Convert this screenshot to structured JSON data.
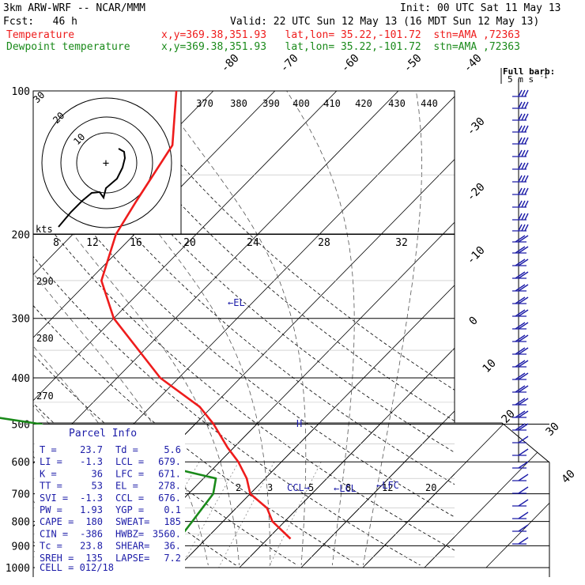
{
  "header": {
    "title": "3km ARW-WRF -- NCAR/MMM",
    "init": "Init: 00 UTC Sat 11 May 13",
    "fcst": "Fcst:   46 h",
    "valid": "Valid: 22 UTC Sun 12 May 13 (16 MDT Sun 12 May 13)",
    "temp_label": "Temperature",
    "temp_info": "x,y=369.38,351.93   lat,lon= 35.22,-101.72  stn=AMA ,72363",
    "dew_label": "Dewpoint temperature",
    "dew_info": "x,y=369.38,351.93   lat,lon= 35.22,-101.72  stn=AMA ,72363",
    "barb_key": "Full barb:",
    "barb_key_units": "5 m s",
    "barb_key_exp": "-1"
  },
  "colors": {
    "temperature": "#ee1c1c",
    "dewpoint": "#1a8a1a",
    "text": "#000000",
    "blue": "#1c1ca8",
    "grid": "#000000",
    "mixing": "#888888"
  },
  "chart_data": {
    "type": "line",
    "subtype": "skew-t log-p sounding",
    "pressure_levels_label": [
      "100",
      "200",
      "300",
      "400",
      "500",
      "600",
      "700",
      "800",
      "900",
      "1000"
    ],
    "pressure_levels": [
      100,
      200,
      300,
      400,
      500,
      600,
      700,
      800,
      900,
      1000
    ],
    "isotherm_labels": [
      "-80",
      "-70",
      "-60",
      "-50",
      "-40",
      "-30",
      "-20",
      "-10",
      "0",
      "10",
      "20",
      "30",
      "40"
    ],
    "mixing_ratio_labels": [
      "2",
      "3",
      "5",
      "8",
      "12",
      "20"
    ],
    "theta_labels": [
      "290",
      "280",
      "270"
    ],
    "series": [
      {
        "name": "Temperature",
        "points": [
          [
            100,
            -66
          ],
          [
            130,
            -58
          ],
          [
            170,
            -55
          ],
          [
            200,
            -53
          ],
          [
            250,
            -48
          ],
          [
            300,
            -40
          ],
          [
            400,
            -23
          ],
          [
            460,
            -12
          ],
          [
            500,
            -7
          ],
          [
            560,
            -1
          ],
          [
            600,
            3
          ],
          [
            650,
            7
          ],
          [
            700,
            10
          ],
          [
            750,
            15
          ],
          [
            800,
            18
          ],
          [
            870,
            23.7
          ]
        ]
      },
      {
        "name": "Dewpoint temperature",
        "points": [
          [
            100,
            -96
          ],
          [
            130,
            -94
          ],
          [
            170,
            -91
          ],
          [
            200,
            -85
          ],
          [
            250,
            -82
          ],
          [
            300,
            -76
          ],
          [
            340,
            -70
          ],
          [
            400,
            -69
          ],
          [
            450,
            -62
          ],
          [
            500,
            -35
          ],
          [
            560,
            -25
          ],
          [
            600,
            -12
          ],
          [
            650,
            2
          ],
          [
            700,
            4
          ],
          [
            800,
            5
          ],
          [
            870,
            5.6
          ]
        ]
      }
    ],
    "hodograph": {
      "speed_rings_label": [
        "10",
        "20",
        "30"
      ],
      "ring_units": "kts",
      "inset_x_labels": [
        "8",
        "12",
        "16",
        "20",
        "24",
        "28",
        "32"
      ],
      "theta_e_labels": [
        "370",
        "380",
        "390",
        "400",
        "410",
        "420",
        "430",
        "440"
      ]
    },
    "annotations": {
      "el": "←EL",
      "lcl": "←LCL",
      "lfc": "←LFC",
      "ccl": "CCL→",
      "h": "H"
    },
    "wind_column": {
      "note": "wind barbs at right margin"
    }
  },
  "parcel_info": {
    "title": "Parcel Info",
    "rows": [
      [
        "T  =",
        "23.7",
        "Td =",
        "5.6"
      ],
      [
        "LI =",
        "-1.3",
        "LCL =",
        "679."
      ],
      [
        "K  =",
        "36",
        "LFC =",
        "671."
      ],
      [
        "TT =",
        "53",
        "EL  =",
        "278."
      ],
      [
        "SVI =",
        "-1.3",
        "CCL =",
        "676."
      ],
      [
        "PW =",
        "1.93",
        "YGP =",
        "0.1"
      ],
      [
        "CAPE =",
        "180",
        "SWEAT=",
        "185"
      ],
      [
        "CIN =",
        "-386",
        "HWBZ=",
        "3560."
      ],
      [
        "Tc =",
        "23.8",
        "SHEAR=",
        "36."
      ],
      [
        "SREH =",
        "135",
        "LAPSE=",
        "7.2"
      ]
    ],
    "cell": "CELL = 012/18"
  }
}
